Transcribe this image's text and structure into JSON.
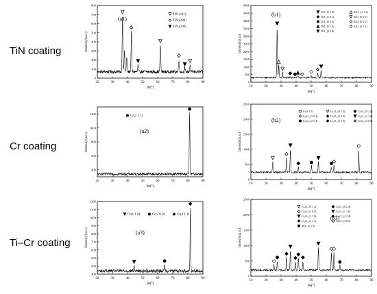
{
  "row_labels": [
    "TiN coating",
    "Cr coating",
    "Ti–Cr coating"
  ],
  "chart_data": [
    {
      "id": "a1",
      "type": "line",
      "title": "(a1)",
      "xlabel": "2θ(°)",
      "ylabel": "Intensity/(a.u.)",
      "xlim": [
        20,
        90
      ],
      "ylim": [
        0,
        800
      ],
      "xticks": [
        "20",
        "30",
        "40",
        "50",
        "60",
        "70",
        "80",
        "90"
      ],
      "yticks": [
        "0",
        "100",
        "200",
        "300",
        "400",
        "500",
        "600",
        "700",
        "800"
      ],
      "baseline": 70,
      "noise": 18,
      "peaks": [
        {
          "x": 36.7,
          "y": 690,
          "w": 0.35,
          "marker": "tri-down-open"
        },
        {
          "x": 38.0,
          "y": 300,
          "w": 0.35,
          "marker": "none"
        },
        {
          "x": 39.5,
          "y": 230,
          "w": 0.35,
          "marker": "none"
        },
        {
          "x": 42.6,
          "y": 520,
          "w": 0.35,
          "marker": "diamond-open"
        },
        {
          "x": 47.0,
          "y": 150,
          "w": 0.3,
          "marker": "tri-down-filled"
        },
        {
          "x": 61.8,
          "y": 370,
          "w": 0.35,
          "marker": "tri-down-open"
        },
        {
          "x": 74.1,
          "y": 210,
          "w": 0.35,
          "marker": "diamond-open"
        },
        {
          "x": 78.0,
          "y": 115,
          "w": 0.3,
          "marker": "tri-down-filled"
        },
        {
          "x": 81.5,
          "y": 150,
          "w": 0.3,
          "marker": "tri-down-open"
        }
      ],
      "legend": [
        {
          "marker": "tri-down-open",
          "label": "TiN (111)"
        },
        {
          "marker": "diamond-open",
          "label": "TiN (200)"
        },
        {
          "marker": "tri-down-filled",
          "label": "TiN (100)"
        }
      ]
    },
    {
      "id": "b1",
      "type": "line",
      "title": "(b1)",
      "xlabel": "2θ(°)",
      "ylabel": "Intensity(a.u.)",
      "xlim": [
        10,
        90
      ],
      "ylim": [
        0,
        5000
      ],
      "xticks": [
        "10",
        "20",
        "30",
        "40",
        "50",
        "60",
        "70",
        "80",
        "90"
      ],
      "yticks": [
        "0",
        "500",
        "1000",
        "1500",
        "2000",
        "2500",
        "3000",
        "3500",
        "4000",
        "4500",
        "5000"
      ],
      "baseline": 300,
      "noise": 50,
      "peaks": [
        {
          "x": 27.4,
          "y": 3600,
          "w": 0.3,
          "marker": "tri-down-filled"
        },
        {
          "x": 28.5,
          "y": 1100,
          "w": 0.3,
          "marker": "tri-up-open"
        },
        {
          "x": 31.0,
          "y": 650,
          "w": 0.3,
          "marker": "tri-down-open"
        },
        {
          "x": 36.1,
          "y": 350,
          "w": 0.3,
          "marker": "diamond-filled"
        },
        {
          "x": 39.2,
          "y": 300,
          "w": 0.3,
          "marker": "circle-filled"
        },
        {
          "x": 41.2,
          "y": 400,
          "w": 0.3,
          "marker": "tri-up-filled"
        },
        {
          "x": 44.0,
          "y": 300,
          "w": 0.3,
          "marker": "diamond-open"
        },
        {
          "x": 50.0,
          "y": 450,
          "w": 0.3,
          "marker": "circle-open"
        },
        {
          "x": 54.3,
          "y": 600,
          "w": 0.3,
          "marker": "star-open"
        },
        {
          "x": 56.6,
          "y": 800,
          "w": 0.3,
          "marker": "tri-down-filled"
        }
      ],
      "legend": [
        {
          "marker": "tri-down-filled",
          "label": "TiO₂ (1 1 0)"
        },
        {
          "marker": "tri-up-open",
          "label": "ZrO₂ (-1 1 1)"
        },
        {
          "marker": "diamond-filled",
          "label": "TiO₂ (1 0 1)"
        },
        {
          "marker": "tri-down-open",
          "label": "ZrO₂ (0 2 0)"
        },
        {
          "marker": "circle-filled",
          "label": "TiO₂ (2 0 0)"
        },
        {
          "marker": "diamond-open",
          "label": "ZrO₂ (0 2 2)"
        },
        {
          "marker": "tri-up-filled",
          "label": "TiO₂ (2 1 0)"
        },
        {
          "marker": "circle-open",
          "label": "ZrO₂ (1 1 3)"
        },
        {
          "marker": "tri-down-filled",
          "label": "TiO₂ (2 2 0)"
        }
      ]
    },
    {
      "id": "a2",
      "type": "line",
      "title": "(a2)",
      "xlabel": "2θ(°)",
      "ylabel": "Intensity/(a.u.)",
      "xlim": [
        20,
        90
      ],
      "ylim": [
        300,
        1300
      ],
      "xticks": [
        "20",
        "30",
        "40",
        "50",
        "60",
        "70",
        "80",
        "90"
      ],
      "yticks": [
        "400",
        "600",
        "800",
        "1000",
        "1200"
      ],
      "baseline": 340,
      "noise": 20,
      "peaks": [
        {
          "x": 81.2,
          "y": 1220,
          "w": 0.3,
          "marker": "circle-filled"
        }
      ],
      "legend": [
        {
          "marker": "circle-filled",
          "label": "Cr(2 1 1)"
        }
      ]
    },
    {
      "id": "b2",
      "type": "line",
      "title": "(b2)",
      "xlabel": "2θ(°)",
      "ylabel": "Intensity(a.u.)",
      "xlim": [
        10,
        90
      ],
      "ylim": [
        0,
        2500
      ],
      "xticks": [
        "10",
        "20",
        "30",
        "40",
        "50",
        "60",
        "70",
        "80",
        "90"
      ],
      "yticks": [
        "0",
        "500",
        "1000",
        "1500",
        "2000",
        "2500"
      ],
      "baseline": 240,
      "noise": 30,
      "peaks": [
        {
          "x": 24.5,
          "y": 600,
          "w": 0.3,
          "marker": "tri-down-open"
        },
        {
          "x": 33.6,
          "y": 730,
          "w": 0.3,
          "marker": "diamond-open"
        },
        {
          "x": 36.2,
          "y": 1020,
          "w": 0.3,
          "marker": "tri-down-filled"
        },
        {
          "x": 41.5,
          "y": 420,
          "w": 0.3,
          "marker": "diamond-filled"
        },
        {
          "x": 50.2,
          "y": 450,
          "w": 0.3,
          "marker": "circle-filled"
        },
        {
          "x": 54.8,
          "y": 600,
          "w": 0.3,
          "marker": "tri-down-filled"
        },
        {
          "x": 63.4,
          "y": 420,
          "w": 0.3,
          "marker": "circle-filled"
        },
        {
          "x": 65.1,
          "y": 480,
          "w": 0.3,
          "marker": "diamond-open"
        },
        {
          "x": 81.5,
          "y": 1000,
          "w": 0.3,
          "marker": "circle-open"
        }
      ],
      "legend": [
        {
          "marker": "circle-open",
          "label": "Cr(2 1 1)"
        },
        {
          "marker": "tri-down-open",
          "label": "Cr₂O₃ (0 1 2)"
        },
        {
          "marker": "circle-filled",
          "label": "Cr₂O₃ (0 2 4)"
        },
        {
          "marker": "diamond-open",
          "label": "Cr₂O₃ (1 0 4)"
        },
        {
          "marker": "diamond-filled",
          "label": "Cr₂O₃ (1 1 6)"
        },
        {
          "marker": "tri-down-filled",
          "label": "Cr₂O₃ (1 1 0)"
        },
        {
          "marker": "circle-filled",
          "label": "Cr₂O₃ (2 1 4)"
        },
        {
          "marker": "diamond-filled",
          "label": "Cr₂O₃ (1 1 3)"
        },
        {
          "marker": "star-open",
          "label": "Cr₂O₃ (3 0 0)"
        }
      ]
    },
    {
      "id": "a3",
      "type": "line",
      "title": "(a3)",
      "xlabel": "2θ(°)",
      "ylabel": "Intensity/(a.u.)",
      "xlim": [
        20,
        90
      ],
      "ylim": [
        300,
        1200
      ],
      "xticks": [
        "20",
        "30",
        "40",
        "50",
        "60",
        "70",
        "80",
        "90"
      ],
      "yticks": [
        "300",
        "400",
        "500",
        "600",
        "700",
        "800",
        "900",
        "1000",
        "1100",
        "1200"
      ],
      "baseline": 340,
      "noise": 20,
      "peaks": [
        {
          "x": 44.4,
          "y": 410,
          "w": 0.3,
          "marker": "tri-down-filled"
        },
        {
          "x": 64.6,
          "y": 420,
          "w": 0.3,
          "marker": "circle-filled"
        },
        {
          "x": 81.7,
          "y": 1130,
          "w": 0.3,
          "marker": "diamond-filled"
        }
      ],
      "legend": [
        {
          "marker": "tri-down-filled",
          "label": "Cr(1 1 0)"
        },
        {
          "marker": "circle-filled",
          "label": "Cr(2 0 0)"
        },
        {
          "marker": "diamond-filled",
          "label": "Cr(2 1 1)"
        }
      ]
    },
    {
      "id": "b3",
      "type": "line",
      "title": "(b3)",
      "xlabel": "2θ(°)",
      "ylabel": "Intensity(a.u.)",
      "xlim": [
        10,
        90
      ],
      "ylim": [
        0,
        2500
      ],
      "xticks": [
        "10",
        "20",
        "30",
        "40",
        "50",
        "60",
        "70",
        "80",
        "90"
      ],
      "yticks": [
        "0",
        "500",
        "1000",
        "1500",
        "2000",
        "2500"
      ],
      "baseline": 200,
      "noise": 30,
      "peaks": [
        {
          "x": 25.3,
          "y": 380,
          "w": 0.3,
          "marker": "circle-open"
        },
        {
          "x": 27.5,
          "y": 500,
          "w": 0.3,
          "marker": "circle-filled"
        },
        {
          "x": 33.6,
          "y": 620,
          "w": 0.3,
          "marker": "diamond-filled"
        },
        {
          "x": 36.2,
          "y": 850,
          "w": 0.3,
          "marker": "tri-down-filled"
        },
        {
          "x": 39.5,
          "y": 480,
          "w": 0.3,
          "marker": "diamond-filled"
        },
        {
          "x": 41.5,
          "y": 600,
          "w": 0.3,
          "marker": "diamond-filled"
        },
        {
          "x": 44.5,
          "y": 500,
          "w": 0.3,
          "marker": "diamond-filled"
        },
        {
          "x": 54.8,
          "y": 950,
          "w": 0.3,
          "marker": "tri-down-filled"
        },
        {
          "x": 63.4,
          "y": 780,
          "w": 0.3,
          "marker": "diamond-open"
        },
        {
          "x": 65.1,
          "y": 780,
          "w": 0.3,
          "marker": "circle-open"
        },
        {
          "x": 69.0,
          "y": 350,
          "w": 0.3,
          "marker": "circle-filled"
        }
      ],
      "legend": [
        {
          "marker": "tri-down-open",
          "label": "Cr₂O₃ (0 1 2)"
        },
        {
          "marker": "circle-filled",
          "label": "Cr₂O₃ (0 2 4)"
        },
        {
          "marker": "diamond-open",
          "label": "Cr₂O₃ (1 0 4)"
        },
        {
          "marker": "tri-down-filled",
          "label": "Cr₂O₃ (1 1 6)"
        },
        {
          "marker": "tri-down-filled",
          "label": "Cr₂O₃ (1 1 0)"
        },
        {
          "marker": "diamond-filled",
          "label": "Cr₂O₃ (2 1 4)"
        },
        {
          "marker": "diamond-filled",
          "label": "Cr₂O₃ (1 1 3)"
        },
        {
          "marker": "circle-open",
          "label": "Cr₂O₃ (3 0 0)"
        },
        {
          "marker": "circle-filled",
          "label": "TiO₂ (1 1 0)"
        }
      ]
    }
  ]
}
